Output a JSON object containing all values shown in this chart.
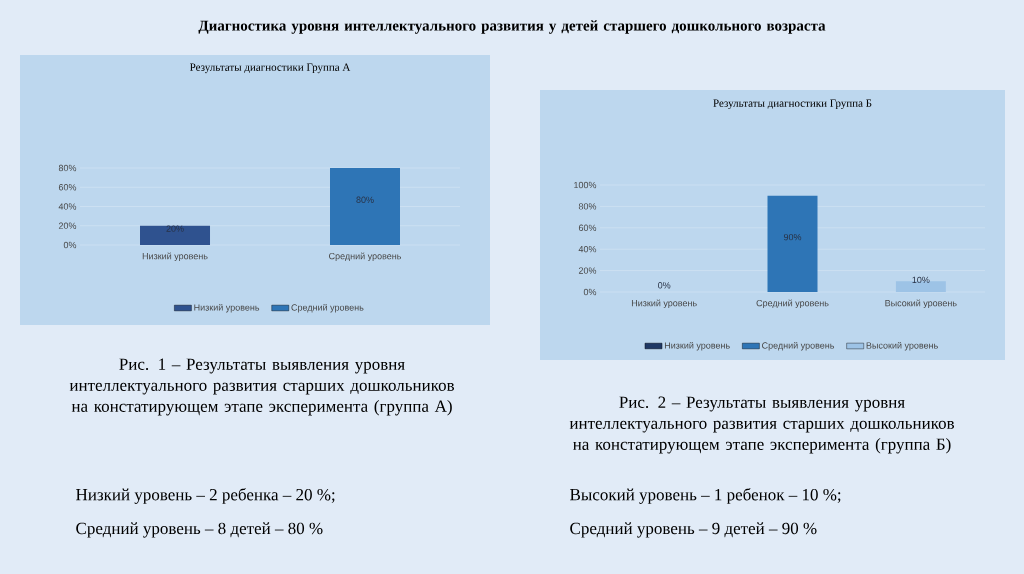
{
  "chart_data": [
    {
      "type": "bar",
      "title": "Результаты диагностики Группа А",
      "categories": [
        "Низкий уровень",
        "Средний уровень"
      ],
      "series": [
        {
          "name": "Низкий уровень",
          "color": "#2f528f",
          "values": [
            20,
            null
          ],
          "value_labels": [
            "20%",
            null
          ]
        },
        {
          "name": "Средний уровень",
          "color": "#2e75b6",
          "values": [
            null,
            80
          ],
          "value_labels": [
            null,
            "80%"
          ]
        }
      ],
      "ylim": [
        0,
        80
      ],
      "yticks": [
        {
          "value": 0,
          "label": "0%"
        },
        {
          "value": 20,
          "label": "20%"
        },
        {
          "value": 40,
          "label": "40%"
        },
        {
          "value": 60,
          "label": "60%"
        },
        {
          "value": 80,
          "label": "80%"
        }
      ],
      "grid": "y",
      "legend": "bottom",
      "annotations": [
        "Диагностика уровня интеллектуального развития у детей старшего дошкольного возраста",
        "Рис. 1 – Результаты выявления уровня интеллектуального развития старших дошкольников на констатирующем этапе эксперимента (группа А)",
        "Низкий уровень – 2 ребенка – 20 %;",
        "Средний уровень – 8 детей – 80 %"
      ]
    },
    {
      "type": "bar",
      "title": "Результаты диагностики Группа Б",
      "categories": [
        "Низкий  уровень",
        "Средний уровень",
        "Высокий уровень"
      ],
      "series": [
        {
          "name": "Низкий  уровень",
          "color": "#1f3864",
          "values": [
            0,
            null,
            null
          ],
          "value_labels": [
            "0%",
            null,
            null
          ]
        },
        {
          "name": "Средний уровень",
          "color": "#2e75b6",
          "values": [
            null,
            90,
            null
          ],
          "value_labels": [
            null,
            "90%",
            null
          ]
        },
        {
          "name": "Высокий уровень",
          "color": "#9dc3e6",
          "values": [
            null,
            null,
            10
          ],
          "value_labels": [
            null,
            null,
            "10%"
          ]
        }
      ],
      "ylim": [
        0,
        100
      ],
      "yticks": [
        {
          "value": 0,
          "label": "0%"
        },
        {
          "value": 20,
          "label": "20%"
        },
        {
          "value": 40,
          "label": "40%"
        },
        {
          "value": 60,
          "label": "60%"
        },
        {
          "value": 80,
          "label": "80%"
        },
        {
          "value": 100,
          "label": "100%"
        }
      ],
      "grid": "y",
      "legend": "bottom",
      "annotations": [
        "Рис. 2 – Результаты выявления уровня интеллектуального развития старших дошкольников на констатирующем этапе эксперимента (группа Б)",
        "Высокий уровень – 1 ребенок – 10 %;",
        "Средний уровень – 9 детей – 90 %"
      ]
    }
  ]
}
